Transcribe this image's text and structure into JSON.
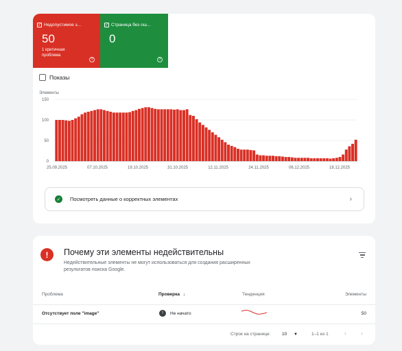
{
  "tiles": {
    "invalid": {
      "label": "Недопустимое з...",
      "count": "50",
      "sub": "1 критичная проблема",
      "help": "?"
    },
    "valid": {
      "label": "Страница без ош...",
      "count": "0",
      "help": "?"
    }
  },
  "impressions_label": "Показы",
  "chart_data": {
    "type": "bar",
    "ylabel": "Элементы",
    "ylim": [
      0,
      150
    ],
    "yticks": [
      "150",
      "100",
      "50",
      "0"
    ],
    "xticks": [
      "25.09.2025",
      "07.10.2025",
      "19.10.2025",
      "31.10.2025",
      "12.11.2025",
      "24.11.2025",
      "06.12.2025",
      "18.12.2025"
    ],
    "color": "#d93025",
    "values": [
      100,
      100,
      100,
      99,
      98,
      100,
      104,
      108,
      114,
      118,
      120,
      122,
      124,
      126,
      126,
      124,
      122,
      120,
      118,
      118,
      118,
      118,
      118,
      119,
      122,
      124,
      127,
      129,
      131,
      131,
      129,
      127,
      126,
      126,
      126,
      126,
      126,
      125,
      126,
      124,
      124,
      126,
      112,
      110,
      102,
      94,
      88,
      82,
      76,
      70,
      64,
      58,
      52,
      46,
      40,
      37,
      34,
      30,
      28,
      28,
      28,
      27,
      26,
      16,
      14,
      14,
      13,
      13,
      13,
      12,
      12,
      11,
      10,
      10,
      9,
      8,
      8,
      8,
      8,
      8,
      7,
      7,
      7,
      7,
      7,
      7,
      6,
      7,
      8,
      10,
      16,
      28,
      36,
      42,
      52
    ]
  },
  "correct_link": "Посмотреть данные о корректных элементах",
  "issues": {
    "title": "Почему эти элементы недействительны",
    "description": "Недействительные элементы не могут использоваться для создания расширенных результатов поиска Google.",
    "columns": {
      "problem": "Проблема",
      "check": "Проверка",
      "trend": "Тенденция",
      "elements": "Элементы"
    },
    "rows": [
      {
        "problem": "Отсутствует поле \"image\"",
        "status": "Не начато",
        "count": "50"
      }
    ],
    "pager": {
      "rows_label": "Строк на странице:",
      "rows_value": "10",
      "range": "1–1 из 1"
    }
  }
}
